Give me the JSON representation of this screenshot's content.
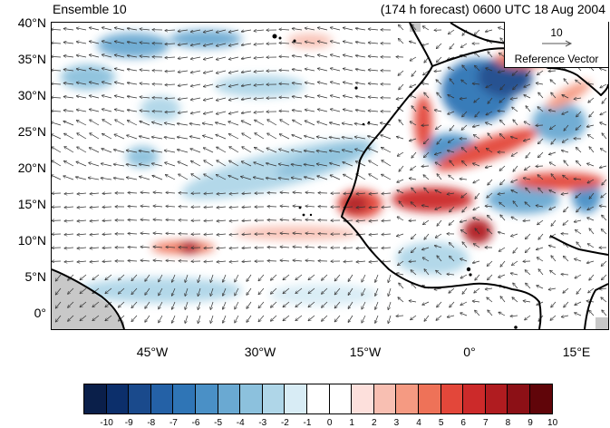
{
  "header": {
    "left_title": "Ensemble 10",
    "right_title": "(174 h forecast) 0600 UTC 18 Aug 2004"
  },
  "map": {
    "lat_labels": [
      "40°N",
      "35°N",
      "30°N",
      "25°N",
      "20°N",
      "15°N",
      "10°N",
      "5°N",
      "0°"
    ],
    "lon_labels": [
      "45°W",
      "30°W",
      "15°W",
      "0°",
      "15°E"
    ],
    "lat_range": [
      0,
      40
    ],
    "lon_range": [
      -57,
      19
    ],
    "land_mask_color": "#c8c8c8"
  },
  "reference_vector": {
    "value": "10",
    "label": "Reference Vector"
  },
  "colorbar": {
    "labels": [
      "-10",
      "-9",
      "-8",
      "-7",
      "-6",
      "-5",
      "-4",
      "-3",
      "-2",
      "-1",
      "0",
      "1",
      "2",
      "3",
      "4",
      "5",
      "6",
      "7",
      "8",
      "9",
      "10"
    ],
    "colors": [
      "#0a1f4a",
      "#0c2f6b",
      "#1a4a8c",
      "#2461a6",
      "#2f75b6",
      "#4a90c6",
      "#6aa9d2",
      "#8cc1dd",
      "#afd6e8",
      "#d8ecf5",
      "#ffffff",
      "#ffffff",
      "#fde0dc",
      "#f8bfb2",
      "#f59a82",
      "#ee7258",
      "#e3473a",
      "#cc2a2a",
      "#b01c20",
      "#8c1016",
      "#600509"
    ]
  }
}
